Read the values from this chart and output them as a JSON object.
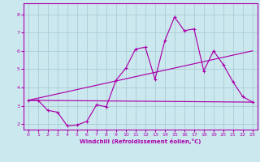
{
  "bg_color": "#cbe8ee",
  "line_color": "#aa00aa",
  "grid_color": "#a8cdd4",
  "spine_color": "#aa00aa",
  "xlabel": "Windchill (Refroidissement éolien,°C)",
  "xlabel_color": "#aa00aa",
  "tick_color": "#aa00aa",
  "xlim": [
    -0.5,
    23.5
  ],
  "ylim": [
    1.7,
    8.6
  ],
  "xticks": [
    0,
    1,
    2,
    3,
    4,
    5,
    6,
    7,
    8,
    9,
    10,
    11,
    12,
    13,
    14,
    15,
    16,
    17,
    18,
    19,
    20,
    21,
    22,
    23
  ],
  "yticks": [
    2,
    3,
    4,
    5,
    6,
    7,
    8
  ],
  "line1_x": [
    0,
    1,
    2,
    3,
    4,
    5,
    6,
    7,
    8,
    9,
    10,
    11,
    12,
    13,
    14,
    15,
    16,
    17,
    18,
    19,
    20,
    21,
    22,
    23
  ],
  "line1_y": [
    3.3,
    3.3,
    2.75,
    2.65,
    1.9,
    1.95,
    2.15,
    3.05,
    2.95,
    4.4,
    5.05,
    6.1,
    6.2,
    4.45,
    6.55,
    7.85,
    7.1,
    7.2,
    4.9,
    6.0,
    5.25,
    4.3,
    3.5,
    3.2
  ],
  "line2_x": [
    0,
    23
  ],
  "line2_y": [
    3.3,
    3.2
  ],
  "line3_x": [
    0,
    23
  ],
  "line3_y": [
    3.3,
    6.0
  ],
  "marker": "+"
}
